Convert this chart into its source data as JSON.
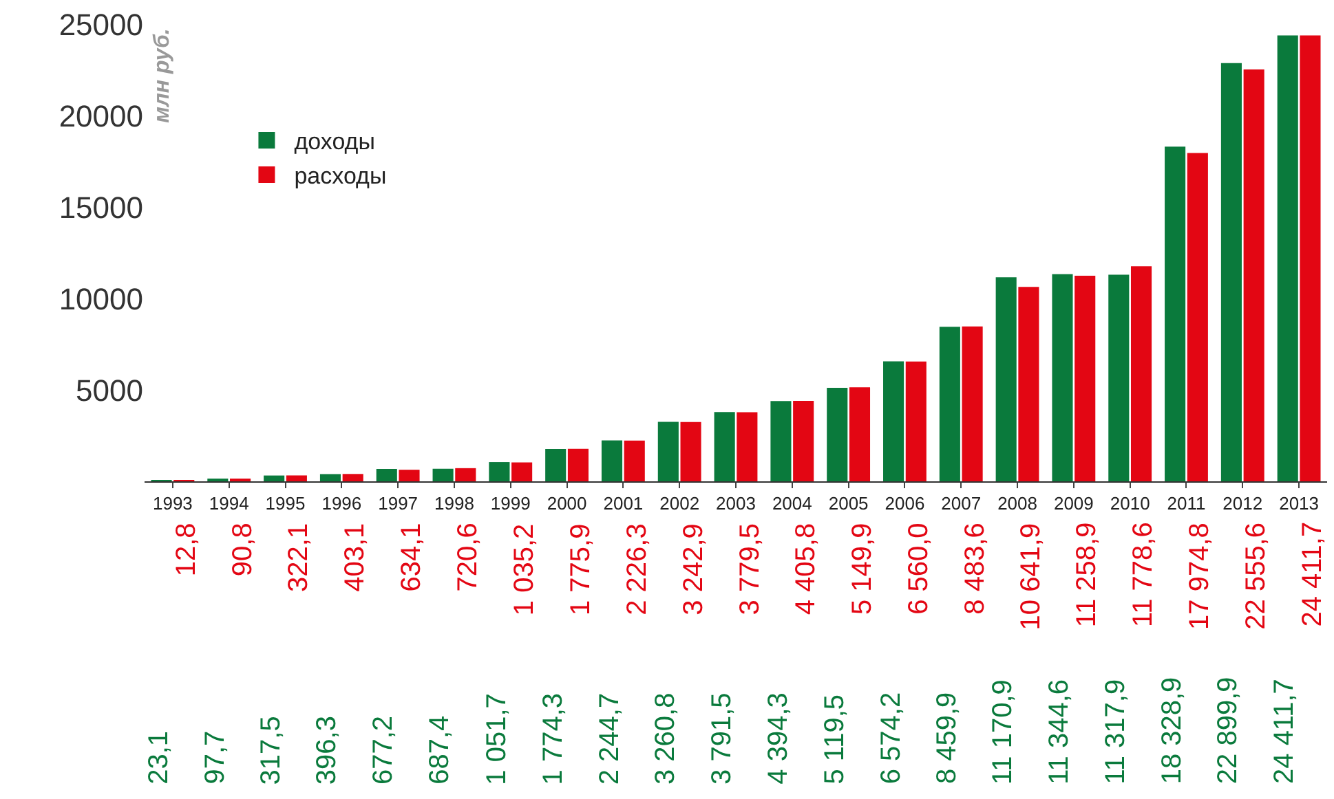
{
  "chart_data": {
    "type": "bar",
    "ylabel": "млн руб.",
    "categories": [
      "1993",
      "1994",
      "1995",
      "1996",
      "1997",
      "1998",
      "1999",
      "2000",
      "2001",
      "2002",
      "2003",
      "2004",
      "2005",
      "2006",
      "2007",
      "2008",
      "2009",
      "2010",
      "2011",
      "2012",
      "2013"
    ],
    "series": [
      {
        "name": "доходы",
        "color": "#0a7a3c",
        "values": [
          23.1,
          97.7,
          317.5,
          396.3,
          677.2,
          687.4,
          1051.7,
          1774.3,
          2244.7,
          3260.8,
          3791.5,
          4394.3,
          5119.5,
          6574.2,
          8459.9,
          11170.9,
          11344.6,
          11317.9,
          18328.9,
          22899.9,
          24411.7
        ],
        "value_labels": [
          "23,1",
          "97,7",
          "317,5",
          "396,3",
          "677,2",
          "687,4",
          "1 051,7",
          "1 774,3",
          "2 244,7",
          "3 260,8",
          "3 791,5",
          "4 394,3",
          "5 119,5",
          "6 574,2",
          "8 459,9",
          "11 170,9",
          "11 344,6",
          "11 317,9",
          "18 328,9",
          "22 899,9",
          "24 411,7"
        ]
      },
      {
        "name": "расходы",
        "color": "#e30613",
        "values": [
          12.8,
          90.8,
          322.1,
          403.1,
          634.1,
          720.6,
          1035.2,
          1775.9,
          2226.3,
          3242.9,
          3779.5,
          4405.8,
          5149.9,
          6560.0,
          8483.6,
          10641.9,
          11258.9,
          11778.6,
          17974.8,
          22555.6,
          24411.7
        ],
        "value_labels": [
          "12,8",
          "90,8",
          "322,1",
          "403,1",
          "634,1",
          "720,6",
          "1 035,2",
          "1 775,9",
          "2 226,3",
          "3 242,9",
          "3 779,5",
          "4 405,8",
          "5 149,9",
          "6 560,0",
          "8 483,6",
          "10 641,9",
          "11 258,9",
          "11 778,6",
          "17 974,8",
          "22 555,6",
          "24 411,7"
        ]
      }
    ],
    "ylim": [
      0,
      25000
    ],
    "yticks": [
      5000,
      10000,
      15000,
      20000,
      25000
    ],
    "legend": "top left"
  }
}
